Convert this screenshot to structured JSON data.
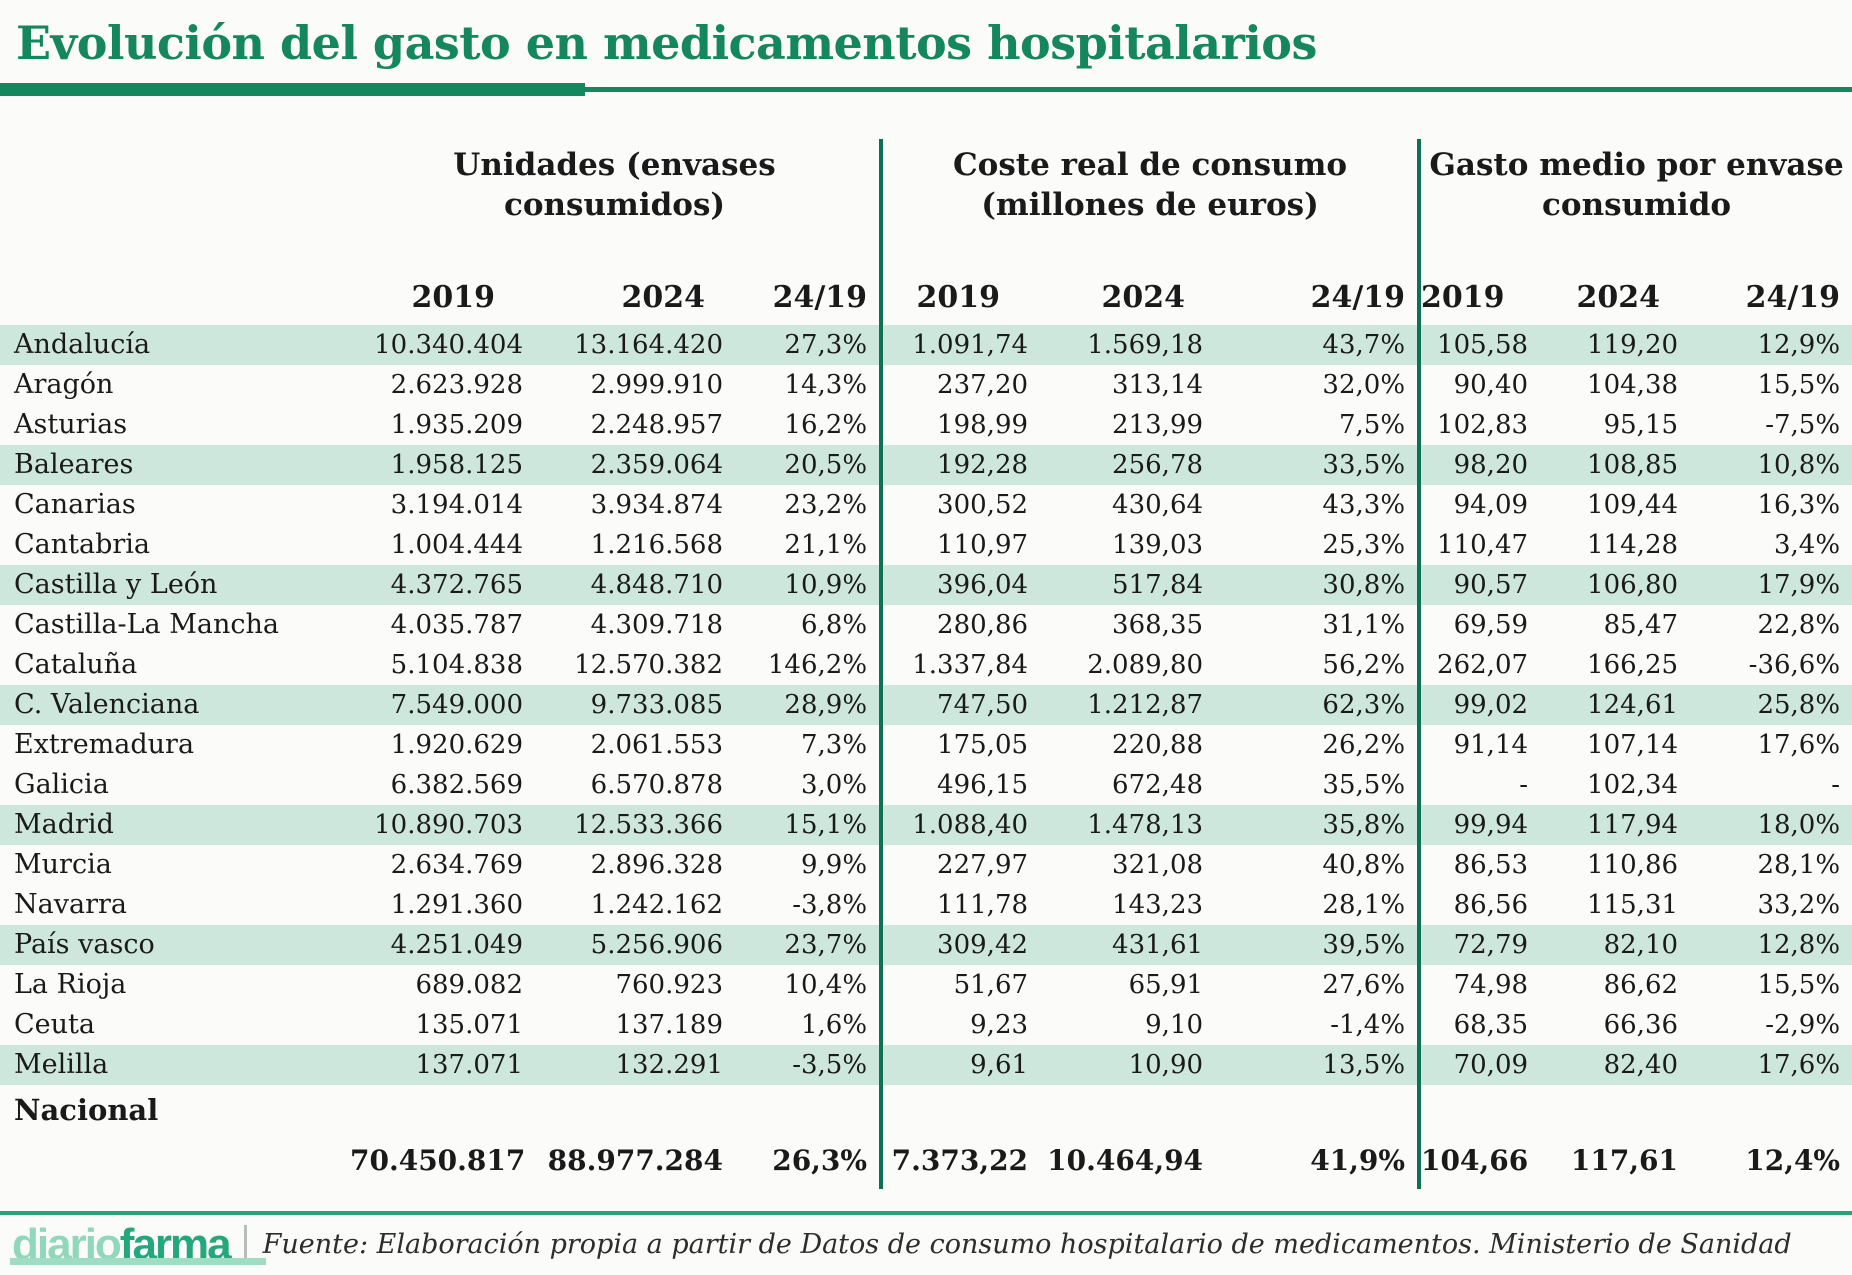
{
  "title": "Evolución del gasto en medicamentos hospitalarios",
  "chart_data": {
    "type": "table",
    "column_groups": [
      "Unidades (envases consumidos)",
      "Coste real de consumo (millones de euros)",
      "Gasto medio por envase consumido"
    ],
    "sub_columns": [
      "2019",
      "2024",
      "24/19"
    ],
    "rows": [
      {
        "region": "Andalucía",
        "values": [
          "10.340.404",
          "13.164.420",
          "27,3%",
          "1.091,74",
          "1.569,18",
          "43,7%",
          "105,58",
          "119,20",
          "12,9%"
        ]
      },
      {
        "region": "Aragón",
        "values": [
          "2.623.928",
          "2.999.910",
          "14,3%",
          "237,20",
          "313,14",
          "32,0%",
          "90,40",
          "104,38",
          "15,5%"
        ]
      },
      {
        "region": "Asturias",
        "values": [
          "1.935.209",
          "2.248.957",
          "16,2%",
          "198,99",
          "213,99",
          "7,5%",
          "102,83",
          "95,15",
          "-7,5%"
        ]
      },
      {
        "region": "Baleares",
        "values": [
          "1.958.125",
          "2.359.064",
          "20,5%",
          "192,28",
          "256,78",
          "33,5%",
          "98,20",
          "108,85",
          "10,8%"
        ]
      },
      {
        "region": "Canarias",
        "values": [
          "3.194.014",
          "3.934.874",
          "23,2%",
          "300,52",
          "430,64",
          "43,3%",
          "94,09",
          "109,44",
          "16,3%"
        ]
      },
      {
        "region": "Cantabria",
        "values": [
          "1.004.444",
          "1.216.568",
          "21,1%",
          "110,97",
          "139,03",
          "25,3%",
          "110,47",
          "114,28",
          "3,4%"
        ]
      },
      {
        "region": "Castilla y León",
        "values": [
          "4.372.765",
          "4.848.710",
          "10,9%",
          "396,04",
          "517,84",
          "30,8%",
          "90,57",
          "106,80",
          "17,9%"
        ]
      },
      {
        "region": "Castilla-La Mancha",
        "values": [
          "4.035.787",
          "4.309.718",
          "6,8%",
          "280,86",
          "368,35",
          "31,1%",
          "69,59",
          "85,47",
          "22,8%"
        ]
      },
      {
        "region": "Cataluña",
        "values": [
          "5.104.838",
          "12.570.382",
          "146,2%",
          "1.337,84",
          "2.089,80",
          "56,2%",
          "262,07",
          "166,25",
          "-36,6%"
        ]
      },
      {
        "region": "C. Valenciana",
        "values": [
          "7.549.000",
          "9.733.085",
          "28,9%",
          "747,50",
          "1.212,87",
          "62,3%",
          "99,02",
          "124,61",
          "25,8%"
        ]
      },
      {
        "region": "Extremadura",
        "values": [
          "1.920.629",
          "2.061.553",
          "7,3%",
          "175,05",
          "220,88",
          "26,2%",
          "91,14",
          "107,14",
          "17,6%"
        ]
      },
      {
        "region": "Galicia",
        "values": [
          "6.382.569",
          "6.570.878",
          "3,0%",
          "496,15",
          "672,48",
          "35,5%",
          "-",
          "102,34",
          "-"
        ]
      },
      {
        "region": "Madrid",
        "values": [
          "10.890.703",
          "12.533.366",
          "15,1%",
          "1.088,40",
          "1.478,13",
          "35,8%",
          "99,94",
          "117,94",
          "18,0%"
        ]
      },
      {
        "region": "Murcia",
        "values": [
          "2.634.769",
          "2.896.328",
          "9,9%",
          "227,97",
          "321,08",
          "40,8%",
          "86,53",
          "110,86",
          "28,1%"
        ]
      },
      {
        "region": "Navarra",
        "values": [
          "1.291.360",
          "1.242.162",
          "-3,8%",
          "111,78",
          "143,23",
          "28,1%",
          "86,56",
          "115,31",
          "33,2%"
        ]
      },
      {
        "region": "País vasco",
        "values": [
          "4.251.049",
          "5.256.906",
          "23,7%",
          "309,42",
          "431,61",
          "39,5%",
          "72,79",
          "82,10",
          "12,8%"
        ]
      },
      {
        "region": "La Rioja",
        "values": [
          "689.082",
          "760.923",
          "10,4%",
          "51,67",
          "65,91",
          "27,6%",
          "74,98",
          "86,62",
          "15,5%"
        ]
      },
      {
        "region": "Ceuta",
        "values": [
          "135.071",
          "137.189",
          "1,6%",
          "9,23",
          "9,10",
          "-1,4%",
          "68,35",
          "66,36",
          "-2,9%"
        ]
      },
      {
        "region": "Melilla",
        "values": [
          "137.071",
          "132.291",
          "-3,5%",
          "9,61",
          "10,90",
          "13,5%",
          "70,09",
          "82,40",
          "17,6%"
        ]
      }
    ],
    "total": {
      "region": "Nacional",
      "values": [
        "70.450.817",
        "88.977.284",
        "26,3%",
        "7.373,22",
        "10.464,94",
        "41,9%",
        "104,66",
        "117,61",
        "12,4%"
      ]
    }
  },
  "footer": {
    "logo": {
      "part1": "diario",
      "part2": "farma"
    },
    "source": "Fuente: Elaboración propia a partir de Datos de consumo hospitalario de medicamentos. Ministerio de Sanidad"
  },
  "colors": {
    "accent_green": "#15875f",
    "divider_green": "#0d7154",
    "row_band_green": "#cee7dd",
    "footer_rule_green": "#25a47b",
    "logo_light_green": "#90d8bc",
    "logo_dark_green": "#25a77c",
    "text": "#1a1a1a"
  }
}
